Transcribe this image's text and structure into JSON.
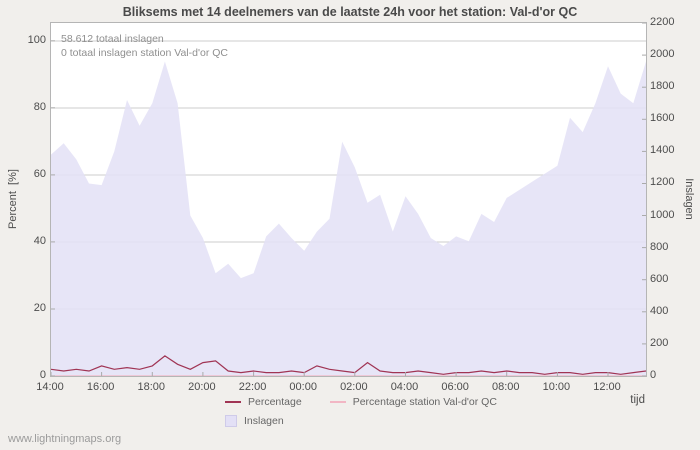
{
  "page": {
    "watermark": "www.lightningmaps.org"
  },
  "chart_data": {
    "type": "area",
    "title": "Bliksems met 14 deelnemers van de laatste 24h voor het station: Val-d'or QC",
    "annotations": [
      "58.612 totaal inslagen",
      "0 totaal inslagen station Val-d'or QC"
    ],
    "xlabel": "tijd",
    "ylabel_left": "Percent  [%]",
    "ylabel_right": "Inslagen",
    "legend_position": "bottom",
    "grid": "horizontal",
    "colors": {
      "grid": "#cccccc",
      "axis": "#aaaaaa"
    },
    "ylim_left": [
      0,
      105.3
    ],
    "ylim_right": [
      0,
      2200
    ],
    "y_left_ticks": [
      0,
      20,
      40,
      60,
      80,
      100
    ],
    "y_right_ticks": [
      0,
      200,
      400,
      600,
      800,
      1000,
      1200,
      1400,
      1600,
      1800,
      2000,
      2200
    ],
    "x_tick_labels": [
      "14:00",
      "16:00",
      "18:00",
      "20:00",
      "22:00",
      "00:00",
      "02:00",
      "04:00",
      "06:00",
      "08:00",
      "10:00",
      "12:00"
    ],
    "x": [
      "14:00",
      "14:30",
      "15:00",
      "15:30",
      "16:00",
      "16:30",
      "17:00",
      "17:30",
      "18:00",
      "18:30",
      "19:00",
      "19:30",
      "20:00",
      "20:30",
      "21:00",
      "21:30",
      "22:00",
      "22:30",
      "23:00",
      "23:30",
      "00:00",
      "00:30",
      "01:00",
      "01:30",
      "02:00",
      "02:30",
      "03:00",
      "03:30",
      "04:00",
      "04:30",
      "05:00",
      "05:30",
      "06:00",
      "06:30",
      "07:00",
      "07:30",
      "08:00",
      "08:30",
      "09:00",
      "09:30",
      "10:00",
      "10:30",
      "11:00",
      "11:30",
      "12:00",
      "12:30",
      "13:00",
      "13:30"
    ],
    "series": [
      {
        "name": "Percentage",
        "type": "line",
        "axis": "left",
        "color": "#a03454",
        "values": [
          2,
          1.5,
          2,
          1.5,
          3,
          2,
          2.5,
          2,
          3,
          6,
          3.5,
          2,
          4,
          4.5,
          1.5,
          1,
          1.5,
          1,
          1,
          1.5,
          1,
          3,
          2,
          1.5,
          1,
          4,
          1.5,
          1,
          1,
          1.5,
          1,
          0.5,
          1,
          1,
          1.5,
          1,
          1.5,
          1,
          1,
          0.5,
          1,
          1,
          0.5,
          1,
          1,
          0.5,
          1,
          1.5
        ]
      },
      {
        "name": "Percentage station Val-d'or QC",
        "type": "line",
        "axis": "left",
        "color": "#f2b6c4",
        "values": [
          0,
          0,
          0,
          0,
          0,
          0,
          0,
          0,
          0,
          0,
          0,
          0,
          0,
          0,
          0,
          0,
          0,
          0,
          0,
          0,
          0,
          0,
          0,
          0,
          0,
          0,
          0,
          0,
          0,
          0,
          0,
          0,
          0,
          0,
          0,
          0,
          0,
          0,
          0,
          0,
          0,
          0,
          0,
          0,
          0,
          0,
          0,
          0
        ]
      },
      {
        "name": "Inslagen",
        "type": "area",
        "axis": "right",
        "color": "#e3e0f6",
        "values": [
          1380,
          1450,
          1350,
          1200,
          1190,
          1400,
          1720,
          1560,
          1700,
          1960,
          1700,
          1000,
          860,
          640,
          700,
          610,
          640,
          870,
          950,
          860,
          780,
          900,
          980,
          1460,
          1300,
          1080,
          1130,
          900,
          1120,
          1010,
          860,
          810,
          870,
          840,
          1010,
          960,
          1110,
          1160,
          1210,
          1260,
          1310,
          1610,
          1520,
          1700,
          1930,
          1760,
          1700,
          1960
        ]
      }
    ]
  }
}
